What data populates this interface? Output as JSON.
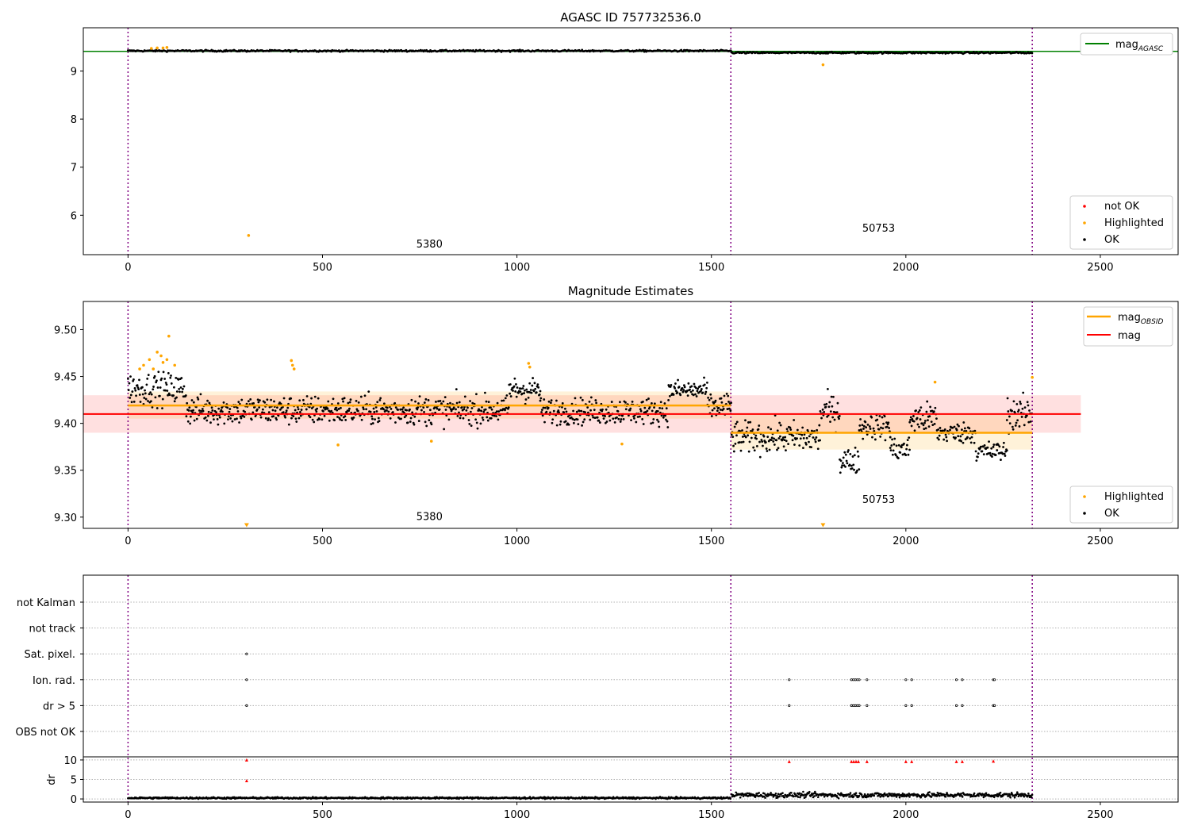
{
  "chart_data": [
    {
      "type": "scatter",
      "title": "AGASC ID 757732536.0",
      "xlim": [
        -115,
        2700
      ],
      "ylim": [
        5.18,
        9.9
      ],
      "xticks": [
        0,
        500,
        1000,
        1500,
        2000,
        2500
      ],
      "yticks": [
        6,
        7,
        8,
        9
      ],
      "vlines": [
        0,
        1550,
        2325
      ],
      "obsid_labels": [
        {
          "text": "5380",
          "x": 775,
          "y": 5.33
        },
        {
          "text": "50753",
          "x": 1930,
          "y": 5.66
        }
      ],
      "hline": {
        "name": "mag_AGASC",
        "value": 9.41,
        "color": "#008000"
      },
      "series": [
        {
          "name": "not OK",
          "color": "#ff0000"
        },
        {
          "name": "Highlighted",
          "color": "#ffa500"
        },
        {
          "name": "OK",
          "color": "#000000"
        }
      ],
      "ok_segments": [
        {
          "x0": 0,
          "x1": 1550,
          "mean": 9.42,
          "spread": 0.012
        },
        {
          "x0": 1552,
          "x1": 2325,
          "mean": 9.38,
          "spread": 0.012
        }
      ],
      "highlighted_points": [
        {
          "x": 310,
          "y": 5.58
        },
        {
          "x": 1787,
          "y": 9.13
        },
        {
          "x": 60,
          "y": 9.47
        },
        {
          "x": 75,
          "y": 9.48
        },
        {
          "x": 90,
          "y": 9.48
        },
        {
          "x": 100,
          "y": 9.49
        }
      ]
    },
    {
      "type": "scatter",
      "title": "Magnitude Estimates",
      "xlim": [
        -115,
        2700
      ],
      "ylim": [
        9.288,
        9.53
      ],
      "xticks": [
        0,
        500,
        1000,
        1500,
        2000,
        2500
      ],
      "yticks": [
        9.3,
        9.35,
        9.4,
        9.45,
        9.5
      ],
      "ytick_labels": [
        "9.30",
        "9.35",
        "9.40",
        "9.45",
        "9.50"
      ],
      "vlines": [
        0,
        1550,
        2325
      ],
      "obsid_labels": [
        {
          "text": "5380",
          "x": 775,
          "y": 9.297
        },
        {
          "text": "50753",
          "x": 1930,
          "y": 9.315
        }
      ],
      "mag": {
        "name": "mag",
        "value": 9.41,
        "band": [
          9.39,
          9.43
        ],
        "x0": -115,
        "x1": 2450,
        "color": "#ff0000"
      },
      "mag_obsid": [
        {
          "name": "mag_OBSID",
          "x0": 0,
          "x1": 1550,
          "value": 9.419,
          "band": [
            9.405,
            9.434
          ],
          "color": "#ffa500"
        },
        {
          "name": "mag_OBSID",
          "x0": 1550,
          "x1": 2325,
          "value": 9.39,
          "band": [
            9.372,
            9.41
          ],
          "color": "#ffa500"
        }
      ],
      "series": [
        {
          "name": "Highlighted",
          "color": "#ffa500"
        },
        {
          "name": "OK",
          "color": "#000000"
        }
      ],
      "ok_segments": [
        {
          "x0": 0,
          "x1": 150,
          "mean": 9.437,
          "spread": 0.012
        },
        {
          "x0": 150,
          "x1": 980,
          "mean": 9.414,
          "spread": 0.011
        },
        {
          "x0": 980,
          "x1": 1060,
          "mean": 9.436,
          "spread": 0.01
        },
        {
          "x0": 1060,
          "x1": 1390,
          "mean": 9.413,
          "spread": 0.01
        },
        {
          "x0": 1390,
          "x1": 1490,
          "mean": 9.435,
          "spread": 0.008
        },
        {
          "x0": 1490,
          "x1": 1552,
          "mean": 9.418,
          "spread": 0.01
        },
        {
          "x0": 1552,
          "x1": 1780,
          "mean": 9.385,
          "spread": 0.012
        },
        {
          "x0": 1780,
          "x1": 1830,
          "mean": 9.413,
          "spread": 0.012
        },
        {
          "x0": 1830,
          "x1": 1880,
          "mean": 9.36,
          "spread": 0.01
        },
        {
          "x0": 1880,
          "x1": 1960,
          "mean": 9.397,
          "spread": 0.01
        },
        {
          "x0": 1960,
          "x1": 2010,
          "mean": 9.372,
          "spread": 0.01
        },
        {
          "x0": 2010,
          "x1": 2080,
          "mean": 9.405,
          "spread": 0.012
        },
        {
          "x0": 2080,
          "x1": 2180,
          "mean": 9.39,
          "spread": 0.008
        },
        {
          "x0": 2180,
          "x1": 2260,
          "mean": 9.37,
          "spread": 0.008
        },
        {
          "x0": 2260,
          "x1": 2325,
          "mean": 9.41,
          "spread": 0.012
        }
      ],
      "highlighted_points": [
        {
          "x": 30,
          "y": 9.458
        },
        {
          "x": 40,
          "y": 9.462
        },
        {
          "x": 55,
          "y": 9.468
        },
        {
          "x": 65,
          "y": 9.458
        },
        {
          "x": 75,
          "y": 9.476
        },
        {
          "x": 85,
          "y": 9.472
        },
        {
          "x": 90,
          "y": 9.465
        },
        {
          "x": 100,
          "y": 9.468
        },
        {
          "x": 105,
          "y": 9.493
        },
        {
          "x": 120,
          "y": 9.462
        },
        {
          "x": 420,
          "y": 9.467
        },
        {
          "x": 423,
          "y": 9.462
        },
        {
          "x": 427,
          "y": 9.458
        },
        {
          "x": 540,
          "y": 9.377
        },
        {
          "x": 780,
          "y": 9.381
        },
        {
          "x": 1030,
          "y": 9.464
        },
        {
          "x": 1033,
          "y": 9.46
        },
        {
          "x": 1270,
          "y": 9.378
        },
        {
          "x": 2075,
          "y": 9.444
        },
        {
          "x": 2325,
          "y": 9.449
        },
        {
          "x": 305,
          "y": 9.291,
          "marker": "down-triangle"
        },
        {
          "x": 1787,
          "y": 9.291,
          "marker": "down-triangle"
        }
      ]
    },
    {
      "type": "scatter",
      "title": "",
      "xlim": [
        -115,
        2700
      ],
      "xticks": [
        0,
        500,
        1000,
        1500,
        2000,
        2500
      ],
      "vlines": [
        0,
        1550,
        2325
      ],
      "flag_rows": [
        "not Kalman",
        "not track",
        "Sat. pixel.",
        "Ion. rad.",
        "dr > 5",
        "OBS not OK"
      ],
      "flag_points": {
        "Sat. pixel.": [
          305
        ],
        "Ion. rad.": [
          305,
          1700,
          1860,
          1865,
          1870,
          1875,
          1880,
          1900,
          2000,
          2015,
          2130,
          2145,
          2225,
          2228
        ],
        "dr > 5": [
          305,
          1700,
          1860,
          1865,
          1870,
          1875,
          1880,
          1900,
          2000,
          2015,
          2130,
          2145,
          2225,
          2228
        ]
      },
      "dr_ylabel": "dr",
      "dr_ylim": [
        -0.8,
        10.8
      ],
      "dr_yticks": [
        0,
        5,
        10
      ],
      "dr_red_points": [
        {
          "x": 305,
          "y": 10
        },
        {
          "x": 305,
          "y": 4.7
        },
        {
          "x": 1700,
          "y": 9.6
        },
        {
          "x": 1860,
          "y": 9.6
        },
        {
          "x": 1866,
          "y": 9.6
        },
        {
          "x": 1872,
          "y": 9.6
        },
        {
          "x": 1878,
          "y": 9.6
        },
        {
          "x": 1900,
          "y": 9.6
        },
        {
          "x": 2000,
          "y": 9.6
        },
        {
          "x": 2015,
          "y": 9.6
        },
        {
          "x": 2130,
          "y": 9.6
        },
        {
          "x": 2145,
          "y": 9.6
        },
        {
          "x": 2225,
          "y": 9.7
        }
      ],
      "dr_segments": [
        {
          "x0": 0,
          "x1": 1550,
          "mean": 0.25,
          "spread": 0.15
        },
        {
          "x0": 1552,
          "x1": 2325,
          "mean": 1.0,
          "spread": 0.45
        }
      ]
    }
  ]
}
